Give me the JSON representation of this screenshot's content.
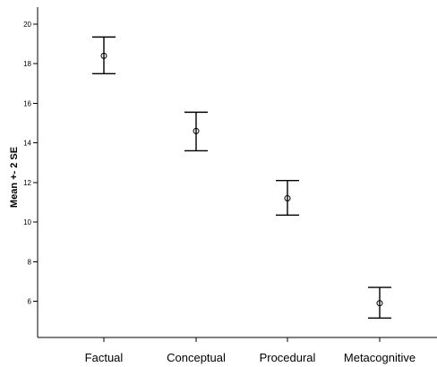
{
  "chart_data": {
    "type": "scatter",
    "subtype": "error-bar",
    "title": "",
    "xlabel": "",
    "ylabel": "Mean +- 2 SE",
    "categories": [
      "Factual",
      "Conceptual",
      "Procedural",
      "Metacognitive"
    ],
    "means": [
      18.4,
      14.6,
      11.2,
      5.9
    ],
    "lower": [
      17.5,
      13.6,
      10.35,
      5.15
    ],
    "upper": [
      19.35,
      15.55,
      12.1,
      6.7
    ],
    "ylim": [
      4.8,
      20.4
    ],
    "yticks": [
      6,
      8,
      10,
      12,
      14,
      16,
      18,
      20
    ],
    "grid": false,
    "legend": "none",
    "colors": {
      "background": "#ffffff",
      "axis": "#000000",
      "marks": "#000000"
    }
  }
}
